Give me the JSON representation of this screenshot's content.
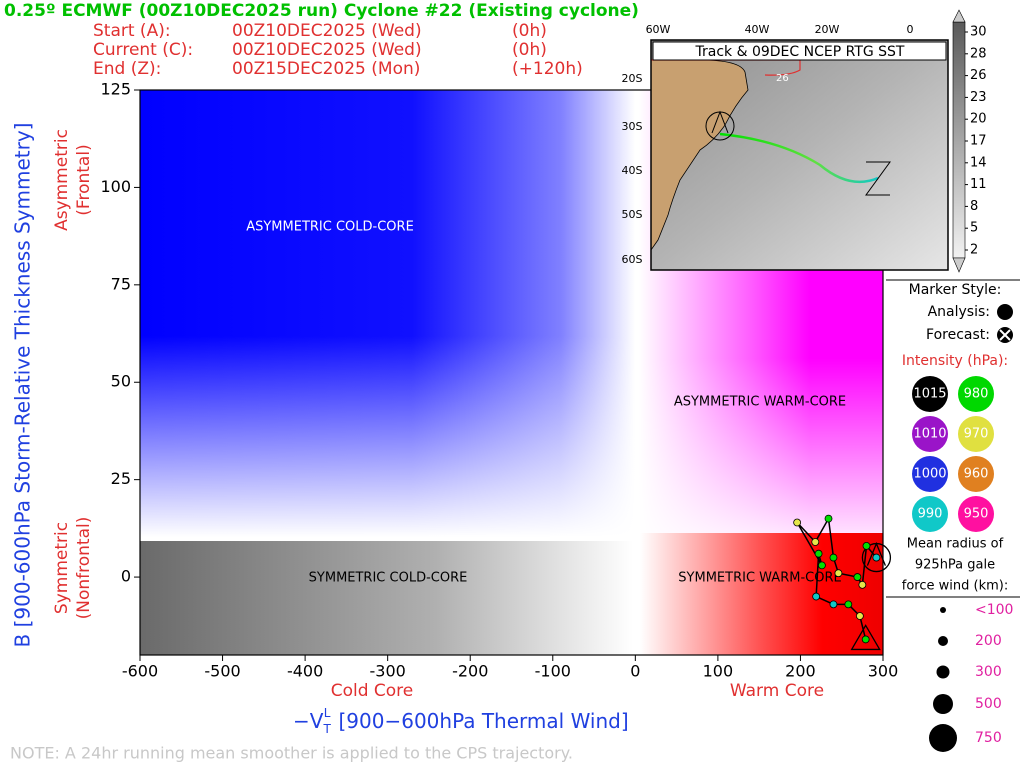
{
  "chart_data": {
    "type": "scatter",
    "title": "0.25º ECMWF (00Z10DEC2025 run) Cyclone #22 (Existing cyclone)",
    "y_label": "B [900-600hPa Storm-Relative Thickness Symmetry]",
    "x_label": {
      "symbol": "−V",
      "sub": "T",
      "sup": "L",
      "text": "[900−600hPa Thermal Wind]"
    },
    "x_notes": [
      "Cold Core",
      "Warm Core"
    ],
    "y_notes": [
      [
        "Asymmetric",
        "(Frontal)"
      ],
      [
        "Symmetric",
        "(Nonfrontal)"
      ]
    ],
    "quadrant_labels": [
      "ASYMMETRIC COLD-CORE",
      "ASYMMETRIC WARM-CORE",
      "SYMMETRIC COLD-CORE",
      "SYMMETRIC WARM-CORE"
    ],
    "xlim": [
      -600,
      300
    ],
    "ylim": [
      -20,
      125
    ],
    "xticks": [
      -600,
      -500,
      -400,
      -300,
      -200,
      -100,
      0,
      100,
      200,
      300
    ],
    "yticks": [
      0,
      25,
      50,
      75,
      100,
      125
    ],
    "x": [
      292,
      280,
      275,
      269,
      246,
      240,
      234,
      218,
      196,
      226,
      222,
      219,
      240,
      258,
      272,
      279
    ],
    "values": [
      5,
      8,
      -2,
      0,
      1,
      5,
      15,
      9,
      14,
      3,
      6,
      -5,
      -7,
      -7,
      -10,
      -16
    ],
    "point_colors": [
      "#10c8c8",
      "#00e000",
      "#e6e64a",
      "#00e000",
      "#e6e64a",
      "#00e000",
      "#00e000",
      "#e6e64a",
      "#e6e64a",
      "#00e000",
      "#00e000",
      "#10c8c8",
      "#10c8c8",
      "#00e000",
      "#e6e64a",
      "#00e000"
    ]
  },
  "header": {
    "rows": [
      [
        "Start (A):",
        "00Z10DEC2025 (Wed)",
        "(0h)"
      ],
      [
        "Current (C):",
        "00Z10DEC2025 (Wed)",
        "(0h)"
      ],
      [
        "End (Z):",
        "00Z15DEC2025 (Mon)",
        "(+120h)"
      ]
    ]
  },
  "inset": {
    "title": "Track & 09DEC NCEP RTG SST",
    "lon_labels": [
      "60W",
      "40W",
      "20W",
      "0"
    ],
    "lat_labels": [
      "20S",
      "30S",
      "40S",
      "50S",
      "60S"
    ],
    "contour_label": "26",
    "colorbar": [
      30,
      28,
      26,
      23,
      20,
      17,
      14,
      11,
      8,
      5,
      2
    ]
  },
  "legend": {
    "marker_title": "Marker Style:",
    "analysis": "Analysis:",
    "forecast": "Forecast:",
    "intensity_title": "Intensity (hPa):",
    "intensity": [
      {
        "label": "1015",
        "color": "#000000"
      },
      {
        "label": "980",
        "color": "#00d800"
      },
      {
        "label": "1010",
        "color": "#9a14c8"
      },
      {
        "label": "970",
        "color": "#e0e040"
      },
      {
        "label": "1000",
        "color": "#2030e0"
      },
      {
        "label": "960",
        "color": "#e08020"
      },
      {
        "label": "990",
        "color": "#10c8c8"
      },
      {
        "label": "950",
        "color": "#ff10a0"
      }
    ],
    "radius_title": [
      "Mean radius of",
      "925hPa gale",
      "force wind (km):"
    ],
    "radius_sizes": [
      "<100",
      "200",
      "300",
      "500",
      "750"
    ]
  },
  "note": "NOTE:  A 24hr running mean smoother is applied to the CPS trajectory."
}
